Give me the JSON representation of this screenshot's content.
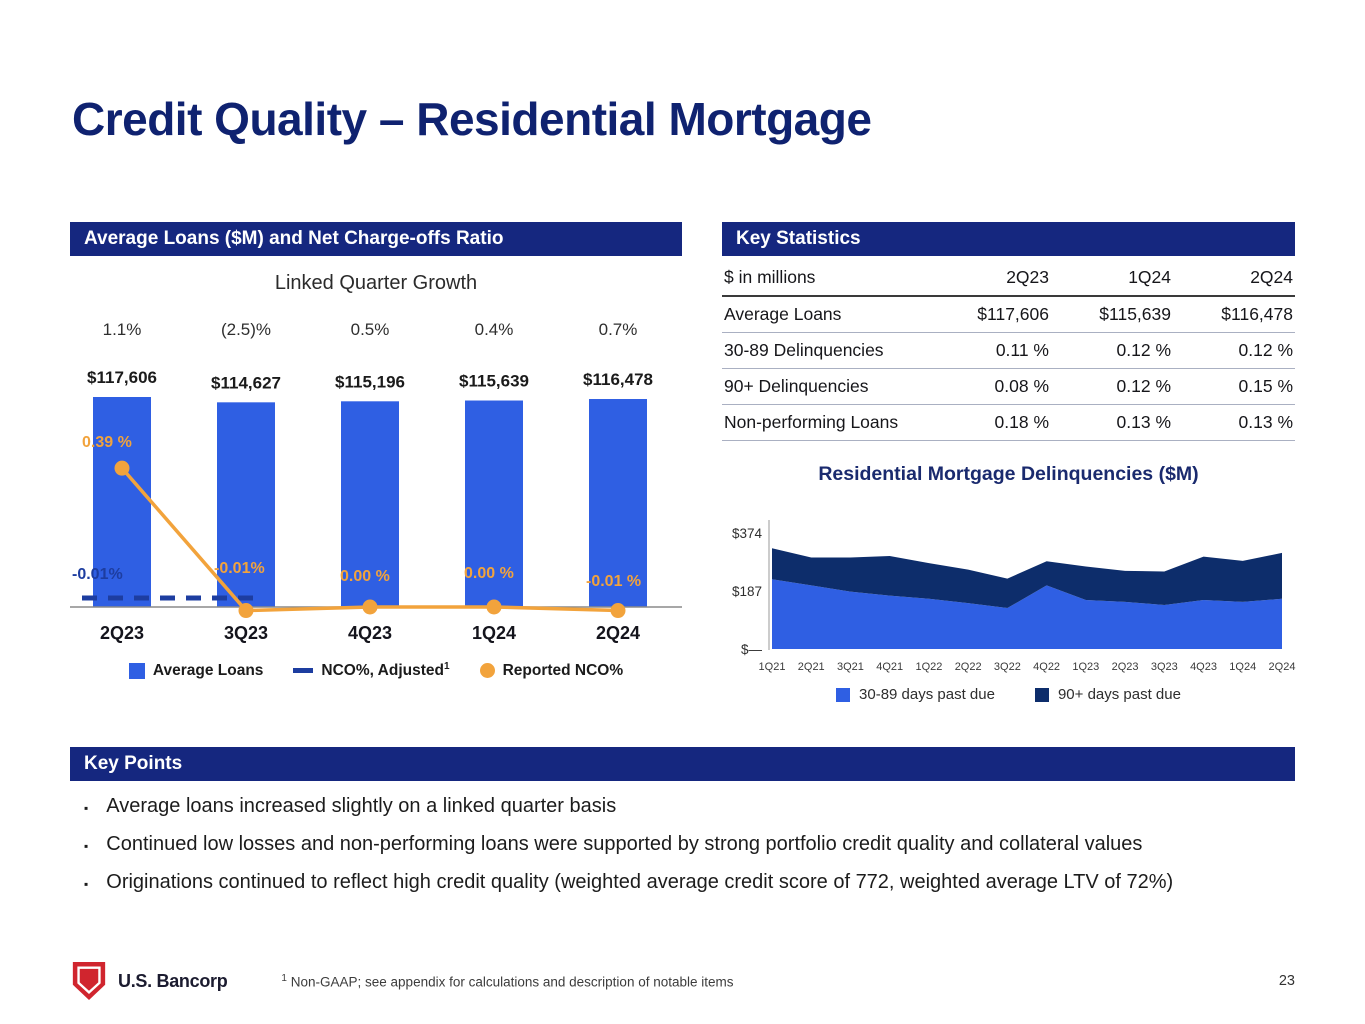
{
  "colors": {
    "navy_header": "#15277f",
    "title_navy": "#0f2270",
    "bar_blue": "#2f5fe3",
    "orange": "#f2a33c",
    "area_light": "#2f5fe3",
    "area_dark": "#0d2d6b",
    "dash_navy": "#1d3da0",
    "logo_red": "#d0252e"
  },
  "slide": {
    "title": "Credit Quality – Residential Mortgage",
    "page_number": "23",
    "footnote_sup": "1",
    "footnote": "Non-GAAP; see appendix for calculations and description of notable items",
    "logo_text": "U.S. Bancorp"
  },
  "left_panel": {
    "header": "Average Loans ($M) and Net Charge-offs Ratio",
    "subtitle": "Linked Quarter Growth",
    "legend": {
      "avg_loans": "Average Loans",
      "nco_adjusted": "NCO%, Adjusted",
      "nco_adjusted_sup": "1",
      "reported_nco": "Reported NCO%"
    }
  },
  "key_statistics": {
    "header": "Key Statistics",
    "columns": [
      "$ in millions",
      "2Q23",
      "1Q24",
      "2Q24"
    ],
    "rows": [
      {
        "label": "Average Loans",
        "values": [
          "$117,606",
          "$115,639",
          "$116,478"
        ]
      },
      {
        "label": "30-89 Delinquencies",
        "values": [
          "0.11 %",
          "0.12 %",
          "0.12 %"
        ]
      },
      {
        "label": "90+ Delinquencies",
        "values": [
          "0.08 %",
          "0.12 %",
          "0.15 %"
        ]
      },
      {
        "label": "Non-performing Loans",
        "values": [
          "0.18 %",
          "0.13 %",
          "0.13 %"
        ]
      }
    ]
  },
  "key_points": {
    "header": "Key Points",
    "bullets": [
      "Average loans increased slightly on a linked quarter basis",
      "Continued low losses and non-performing loans were supported by strong portfolio credit quality and collateral values",
      "Originations continued to reflect high credit quality (weighted average credit score of 772, weighted average LTV of 72%)"
    ]
  },
  "chart_data": [
    {
      "type": "bar",
      "title": "Linked Quarter Growth",
      "categories": [
        "2Q23",
        "3Q23",
        "4Q23",
        "1Q24",
        "2Q24"
      ],
      "growth_labels": [
        "1.1%",
        "(2.5)%",
        "0.5%",
        "0.4%",
        "0.7%"
      ],
      "bar_values": [
        117606,
        114627,
        115196,
        115639,
        116478
      ],
      "bar_labels": [
        "$117,606",
        "$114,627",
        "$115,196",
        "$115,639",
        "$116,478"
      ],
      "series": [
        {
          "name": "Average Loans",
          "values": [
            117606,
            114627,
            115196,
            115639,
            116478
          ]
        },
        {
          "name": "NCO%, Adjusted",
          "values": [
            -0.01,
            -0.01,
            0.0,
            0.0,
            -0.01
          ]
        },
        {
          "name": "Reported NCO%",
          "values": [
            0.39,
            -0.01,
            0.0,
            0.0,
            -0.01
          ]
        }
      ],
      "reported_nco_labels": [
        "0.39 %",
        "-0.01%",
        "0.00 %",
        "0.00 %",
        "-0.01 %"
      ],
      "adjusted_nco_label": "-0.01%",
      "ylabel": "",
      "xlabel": ""
    },
    {
      "type": "area",
      "title": "Residential Mortgage Delinquencies ($M)",
      "categories": [
        "1Q21",
        "2Q21",
        "3Q21",
        "4Q21",
        "1Q22",
        "2Q22",
        "3Q22",
        "4Q22",
        "1Q23",
        "2Q23",
        "3Q23",
        "4Q23",
        "1Q24",
        "2Q24"
      ],
      "series": [
        {
          "name": "30-89 days past due",
          "values": [
            225,
            205,
            185,
            172,
            162,
            148,
            132,
            205,
            158,
            152,
            142,
            158,
            152,
            162
          ]
        },
        {
          "name": "90+ days past due",
          "values": [
            100,
            90,
            110,
            128,
            115,
            108,
            95,
            78,
            108,
            100,
            108,
            140,
            132,
            148
          ]
        }
      ],
      "yticks": [
        {
          "label": "$374",
          "value": 374
        },
        {
          "label": "$187",
          "value": 187
        },
        {
          "label": "$—",
          "value": 0
        }
      ],
      "ylim": [
        0,
        420
      ],
      "legend_position": "bottom",
      "grid": false
    }
  ]
}
